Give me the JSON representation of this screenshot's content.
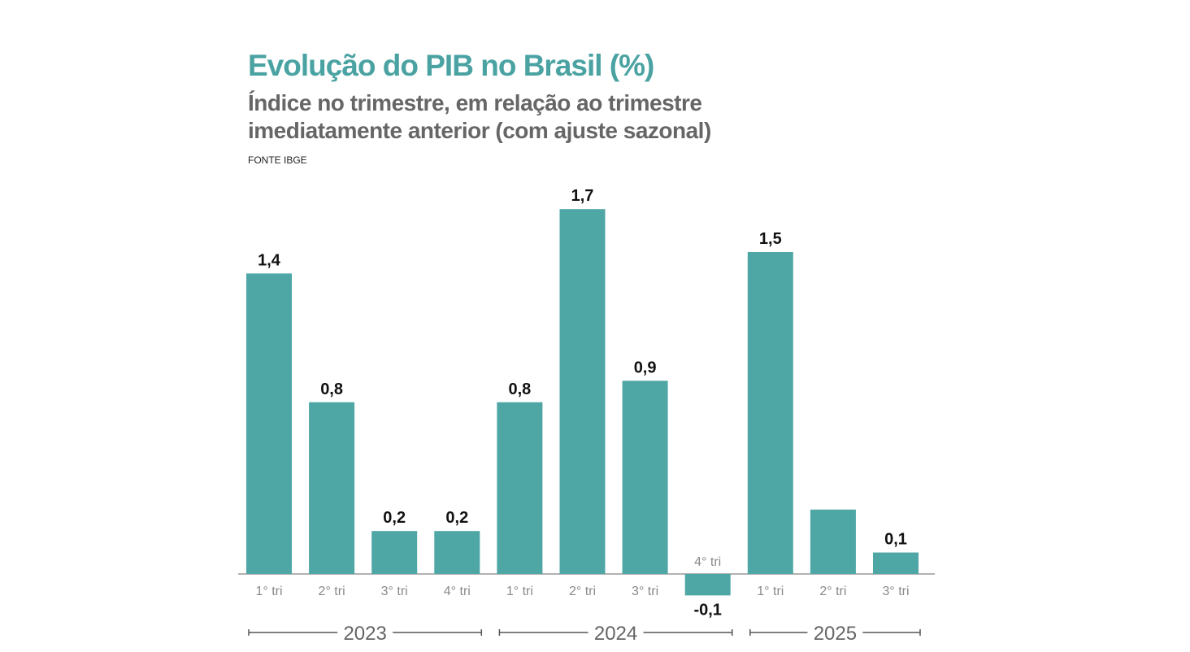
{
  "chart_data": {
    "type": "bar",
    "title": "Evolução do PIB no Brasil (%)",
    "subtitle": "Índice no trimestre, em relação ao trimestre imediatamente anterior (com ajuste sazonal)",
    "source": "FONTE IBGE",
    "categories": [
      "1° tri",
      "2° tri",
      "3° tri",
      "4° tri",
      "1° tri",
      "2° tri",
      "3° tri",
      "4° tri",
      "1° tri",
      "2° tri",
      "3° tri"
    ],
    "values": [
      1.4,
      0.8,
      0.2,
      0.2,
      0.8,
      1.7,
      0.9,
      -0.1,
      1.5,
      0.3,
      0.1
    ],
    "data_labels": [
      "1,4",
      "0,8",
      "0,2",
      "0,2",
      "0,8",
      "1,7",
      "0,9",
      "-0,1",
      "1,5",
      "",
      "0,1"
    ],
    "groups": [
      {
        "label": "2023",
        "start": 0,
        "end": 3
      },
      {
        "label": "2024",
        "start": 4,
        "end": 7
      },
      {
        "label": "2025",
        "start": 8,
        "end": 10
      }
    ],
    "grid": false,
    "legend": "none",
    "colors": {
      "bar": "#4ea6a5",
      "title": "#4aa3a2",
      "subtitle": "#666666",
      "axis": "#888888"
    }
  }
}
